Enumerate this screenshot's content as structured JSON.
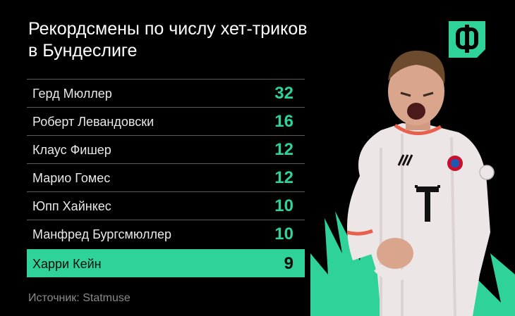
{
  "title": {
    "line1": "Рекордсмены по числу хет-триков",
    "line2": "в Бундеслиге"
  },
  "logo": {
    "icon": "phi-logo-icon",
    "glyph": "Ф",
    "color": "#2fd39a"
  },
  "accent_color": "#2fd39a",
  "rows": [
    {
      "name": "Герд Мюллер",
      "value": "32"
    },
    {
      "name": "Роберт Левандовски",
      "value": "16"
    },
    {
      "name": "Клаус Фишер",
      "value": "12"
    },
    {
      "name": "Марио Гомес",
      "value": "12"
    },
    {
      "name": "Юпп Хайнкес",
      "value": "10"
    },
    {
      "name": "Манфред Бургсмюллер",
      "value": "10"
    },
    {
      "name": "Харри Кейн",
      "value": "9"
    }
  ],
  "source": "Источник: Statmuse",
  "player_image": {
    "icon": "player-photo",
    "shirt_letter": "T"
  }
}
